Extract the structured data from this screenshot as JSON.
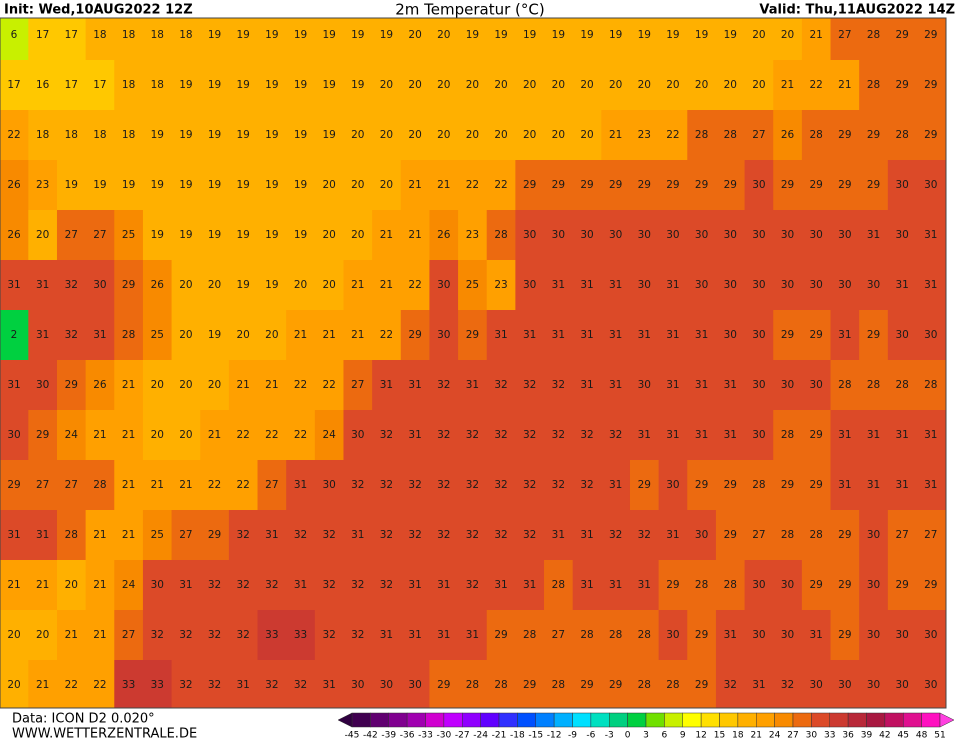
{
  "header": {
    "init": "Init: Wed,10AUG2022 12Z",
    "title": "2m Temperatur (°C)",
    "valid": "Valid: Thu,11AUG2022 14Z"
  },
  "footer": {
    "data": "Data: ICON D2 0.020°",
    "url": "WWW.WETTERZENTRALE.DE"
  },
  "colorbar": {
    "labels": [
      -45,
      -42,
      -39,
      -36,
      -33,
      -30,
      -27,
      -24,
      -21,
      -18,
      -15,
      -12,
      -9,
      -6,
      -3,
      0,
      3,
      6,
      9,
      12,
      15,
      18,
      21,
      24,
      27,
      30,
      33,
      36,
      39,
      42,
      45,
      48,
      51
    ],
    "colors": [
      "#300040",
      "#400050",
      "#600070",
      "#800090",
      "#a000b0",
      "#d000d0",
      "#c000ff",
      "#9000ff",
      "#6000ff",
      "#3030ff",
      "#0050ff",
      "#0080ff",
      "#00b0ff",
      "#00e0ff",
      "#00e0c0",
      "#00d080",
      "#00d040",
      "#70e000",
      "#c8f000",
      "#ffff00",
      "#ffe000",
      "#ffc800",
      "#ffb000",
      "#ffa000",
      "#f88a00",
      "#ec6a10",
      "#dc4a28",
      "#cc3a30",
      "#b82838",
      "#a81840",
      "#c01060",
      "#e01090",
      "#ff10c0",
      "#ff40e0"
    ]
  },
  "temperature_rows": [
    [
      6,
      17,
      17,
      18,
      18,
      18,
      18,
      19,
      19,
      19,
      19,
      19,
      19,
      19,
      20,
      20,
      19,
      19,
      19,
      19,
      19,
      19,
      19,
      19,
      19,
      19,
      20,
      20,
      21,
      27,
      28,
      29,
      29
    ],
    [
      17,
      16,
      17,
      17,
      18,
      18,
      19,
      19,
      19,
      19,
      19,
      19,
      19,
      20,
      20,
      20,
      20,
      20,
      20,
      20,
      20,
      20,
      20,
      20,
      20,
      20,
      20,
      21,
      22,
      21,
      28,
      29,
      29
    ],
    [
      22,
      18,
      18,
      18,
      18,
      19,
      19,
      19,
      19,
      19,
      19,
      19,
      20,
      20,
      20,
      20,
      20,
      20,
      20,
      20,
      20,
      21,
      23,
      22,
      28,
      28,
      27,
      26,
      28,
      29,
      29,
      28,
      29
    ],
    [
      26,
      23,
      19,
      19,
      19,
      19,
      19,
      19,
      19,
      19,
      19,
      20,
      20,
      20,
      21,
      21,
      22,
      22,
      29,
      29,
      29,
      29,
      29,
      29,
      29,
      29,
      30,
      29,
      29,
      29,
      29,
      30,
      30
    ],
    [
      26,
      20,
      27,
      27,
      25,
      19,
      19,
      19,
      19,
      19,
      19,
      20,
      20,
      21,
      21,
      26,
      23,
      28,
      30,
      30,
      30,
      30,
      30,
      30,
      30,
      30,
      30,
      30,
      30,
      30,
      31,
      30,
      31
    ],
    [
      31,
      31,
      32,
      30,
      29,
      26,
      20,
      20,
      19,
      19,
      20,
      20,
      21,
      21,
      22,
      30,
      25,
      23,
      30,
      31,
      31,
      31,
      30,
      31,
      30,
      30,
      30,
      30,
      30,
      30,
      30,
      31,
      31
    ],
    [
      2,
      31,
      32,
      31,
      28,
      25,
      20,
      19,
      20,
      20,
      21,
      21,
      21,
      22,
      29,
      30,
      29,
      31,
      31,
      31,
      31,
      31,
      31,
      31,
      31,
      30,
      30,
      29,
      29,
      31,
      29,
      30,
      30
    ],
    [
      31,
      30,
      29,
      26,
      21,
      20,
      20,
      20,
      21,
      21,
      22,
      22,
      27,
      31,
      31,
      32,
      31,
      32,
      32,
      32,
      31,
      31,
      30,
      31,
      31,
      31,
      30,
      30,
      30,
      28,
      28,
      28,
      28
    ],
    [
      30,
      29,
      24,
      21,
      21,
      20,
      20,
      21,
      22,
      22,
      22,
      24,
      30,
      32,
      31,
      32,
      32,
      32,
      32,
      32,
      32,
      32,
      31,
      31,
      31,
      31,
      30,
      28,
      29,
      31,
      31,
      31,
      31
    ],
    [
      29,
      27,
      27,
      28,
      21,
      21,
      21,
      22,
      22,
      27,
      31,
      30,
      32,
      32,
      32,
      32,
      32,
      32,
      32,
      32,
      32,
      31,
      29,
      30,
      29,
      29,
      28,
      29,
      29,
      31,
      31,
      31,
      31
    ],
    [
      31,
      31,
      28,
      21,
      21,
      25,
      27,
      29,
      32,
      31,
      32,
      32,
      31,
      32,
      32,
      32,
      32,
      32,
      32,
      31,
      31,
      32,
      32,
      31,
      30,
      29,
      27,
      28,
      28,
      29,
      30,
      27,
      27
    ],
    [
      21,
      21,
      20,
      21,
      24,
      30,
      31,
      32,
      32,
      32,
      31,
      32,
      32,
      32,
      31,
      31,
      32,
      31,
      31,
      28,
      31,
      31,
      31,
      29,
      28,
      28,
      30,
      30,
      29,
      29,
      30,
      29,
      29
    ],
    [
      20,
      20,
      21,
      21,
      27,
      32,
      32,
      32,
      32,
      33,
      33,
      32,
      32,
      31,
      31,
      31,
      31,
      29,
      28,
      27,
      28,
      28,
      28,
      30,
      29,
      31,
      30,
      30,
      31,
      29,
      30,
      30,
      30
    ],
    [
      20,
      21,
      22,
      22,
      33,
      33,
      32,
      32,
      31,
      32,
      32,
      31,
      30,
      30,
      30,
      29,
      28,
      28,
      29,
      28,
      29,
      29,
      28,
      28,
      29,
      32,
      31,
      32,
      30,
      30,
      30,
      30,
      30
    ]
  ]
}
